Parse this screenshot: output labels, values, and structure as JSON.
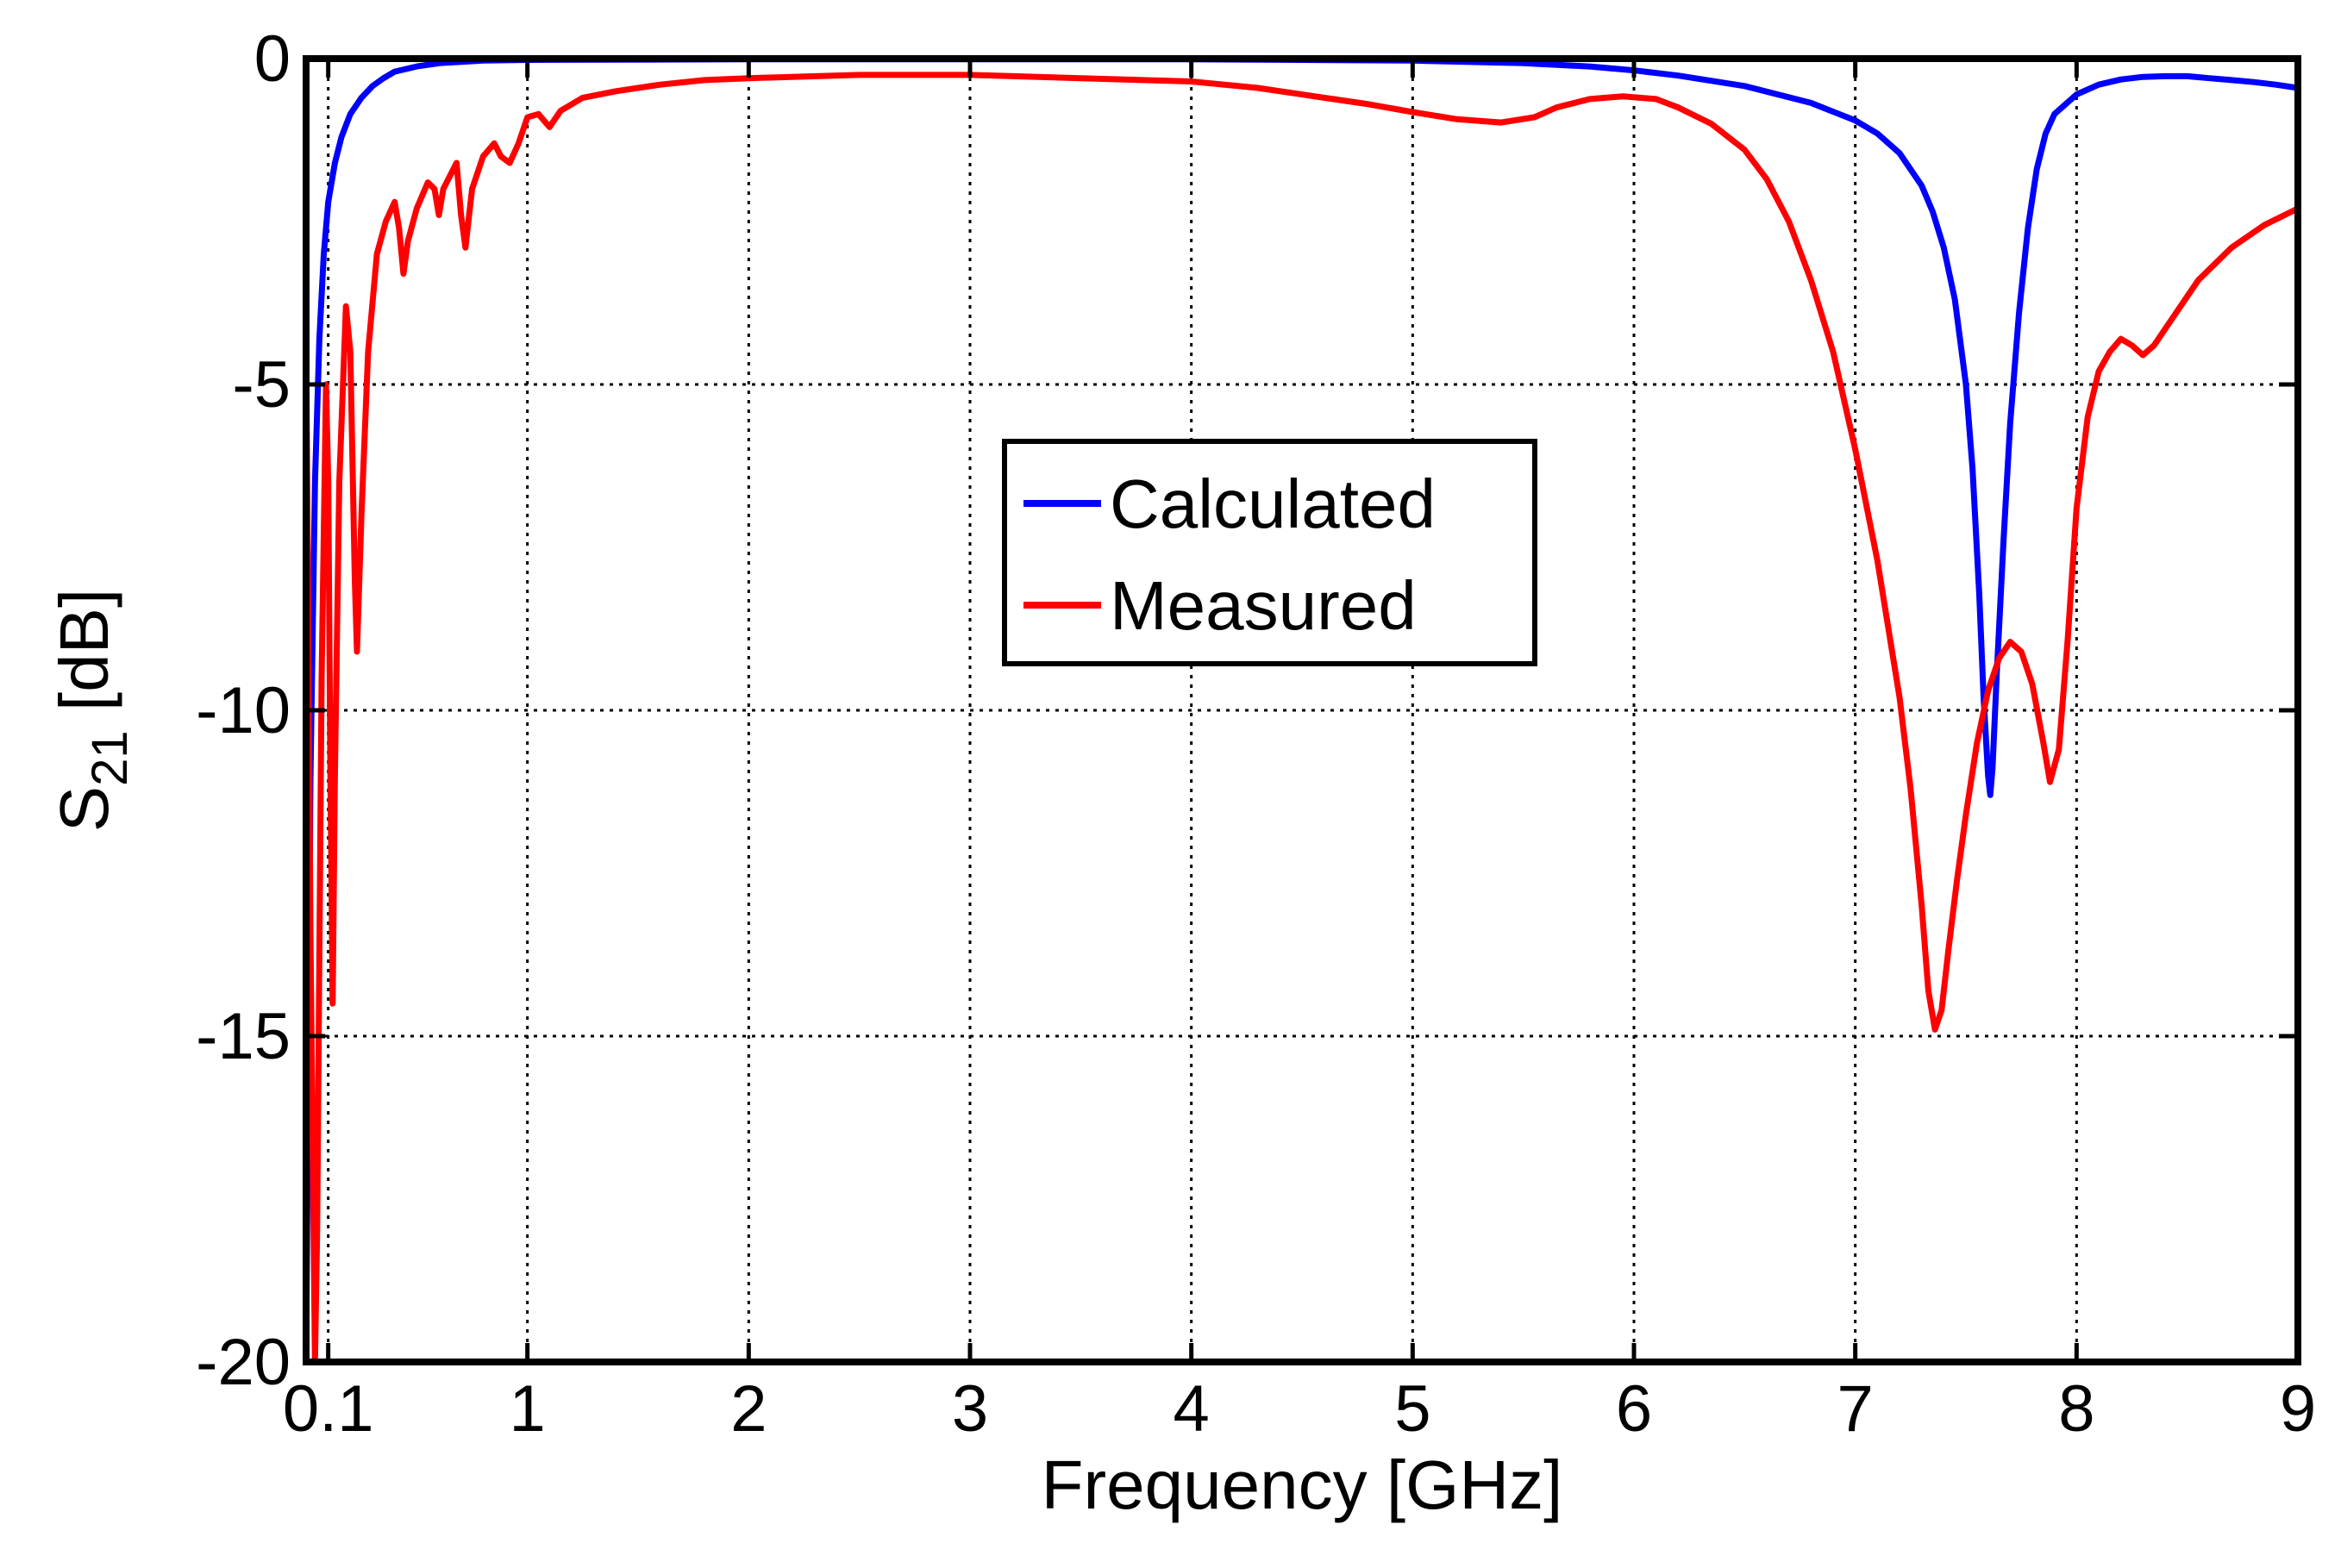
{
  "chart_data": {
    "type": "line",
    "title": "",
    "xlabel": "Frequency [GHz]",
    "ylabel_main": "S",
    "ylabel_sub": "21",
    "ylabel_unit": " [dB]",
    "xlim": [
      0,
      9
    ],
    "ylim": [
      -20,
      0
    ],
    "grid": true,
    "legend_position": "center",
    "xticks": [
      0.1,
      1,
      2,
      3,
      4,
      5,
      6,
      7,
      8,
      9
    ],
    "xtick_labels": [
      "0.1",
      "1",
      "2",
      "3",
      "4",
      "5",
      "6",
      "7",
      "8",
      "9"
    ],
    "yticks": [
      0,
      -5,
      -10,
      -15,
      -20
    ],
    "ytick_labels": [
      "0",
      "-5",
      "-10",
      "-15",
      "-20"
    ],
    "series": [
      {
        "name": "Calculated",
        "color": "#0000ff",
        "points": [
          [
            0.0,
            -20
          ],
          [
            0.02,
            -11
          ],
          [
            0.04,
            -6.5
          ],
          [
            0.06,
            -4.3
          ],
          [
            0.08,
            -3.0
          ],
          [
            0.1,
            -2.2
          ],
          [
            0.13,
            -1.6
          ],
          [
            0.16,
            -1.2
          ],
          [
            0.2,
            -0.85
          ],
          [
            0.25,
            -0.6
          ],
          [
            0.3,
            -0.42
          ],
          [
            0.35,
            -0.3
          ],
          [
            0.4,
            -0.2
          ],
          [
            0.5,
            -0.12
          ],
          [
            0.6,
            -0.07
          ],
          [
            0.8,
            -0.03
          ],
          [
            1.0,
            -0.02
          ],
          [
            2.0,
            -0.01
          ],
          [
            3.0,
            -0.01
          ],
          [
            4.0,
            -0.01
          ],
          [
            4.5,
            -0.02
          ],
          [
            5.0,
            -0.03
          ],
          [
            5.5,
            -0.07
          ],
          [
            5.8,
            -0.12
          ],
          [
            6.0,
            -0.18
          ],
          [
            6.2,
            -0.26
          ],
          [
            6.5,
            -0.42
          ],
          [
            6.8,
            -0.68
          ],
          [
            7.0,
            -0.95
          ],
          [
            7.1,
            -1.15
          ],
          [
            7.2,
            -1.45
          ],
          [
            7.3,
            -1.95
          ],
          [
            7.35,
            -2.35
          ],
          [
            7.4,
            -2.9
          ],
          [
            7.45,
            -3.7
          ],
          [
            7.5,
            -5.0
          ],
          [
            7.53,
            -6.3
          ],
          [
            7.56,
            -8.2
          ],
          [
            7.58,
            -9.8
          ],
          [
            7.6,
            -11.0
          ],
          [
            7.61,
            -11.3
          ],
          [
            7.62,
            -10.9
          ],
          [
            7.64,
            -9.4
          ],
          [
            7.67,
            -7.4
          ],
          [
            7.7,
            -5.6
          ],
          [
            7.74,
            -3.9
          ],
          [
            7.78,
            -2.6
          ],
          [
            7.82,
            -1.7
          ],
          [
            7.86,
            -1.15
          ],
          [
            7.9,
            -0.85
          ],
          [
            8.0,
            -0.55
          ],
          [
            8.1,
            -0.4
          ],
          [
            8.2,
            -0.32
          ],
          [
            8.3,
            -0.28
          ],
          [
            8.4,
            -0.27
          ],
          [
            8.5,
            -0.27
          ],
          [
            8.6,
            -0.3
          ],
          [
            8.7,
            -0.33
          ],
          [
            8.8,
            -0.36
          ],
          [
            8.9,
            -0.4
          ],
          [
            9.0,
            -0.45
          ]
        ]
      },
      {
        "name": "Measured",
        "color": "#ff0000",
        "points": [
          [
            0.0,
            -4.3
          ],
          [
            0.02,
            -13.5
          ],
          [
            0.04,
            -20
          ],
          [
            0.05,
            -18
          ],
          [
            0.07,
            -9.5
          ],
          [
            0.09,
            -5.0
          ],
          [
            0.1,
            -6.5
          ],
          [
            0.11,
            -11
          ],
          [
            0.12,
            -14.5
          ],
          [
            0.13,
            -11
          ],
          [
            0.15,
            -6.5
          ],
          [
            0.18,
            -3.8
          ],
          [
            0.2,
            -4.5
          ],
          [
            0.22,
            -8.0
          ],
          [
            0.23,
            -9.1
          ],
          [
            0.25,
            -7.0
          ],
          [
            0.28,
            -4.5
          ],
          [
            0.32,
            -3.0
          ],
          [
            0.36,
            -2.5
          ],
          [
            0.4,
            -2.2
          ],
          [
            0.42,
            -2.6
          ],
          [
            0.44,
            -3.3
          ],
          [
            0.46,
            -2.8
          ],
          [
            0.5,
            -2.3
          ],
          [
            0.55,
            -1.9
          ],
          [
            0.58,
            -2.0
          ],
          [
            0.6,
            -2.4
          ],
          [
            0.62,
            -2.0
          ],
          [
            0.65,
            -1.8
          ],
          [
            0.68,
            -1.6
          ],
          [
            0.7,
            -2.4
          ],
          [
            0.72,
            -2.9
          ],
          [
            0.75,
            -2.0
          ],
          [
            0.8,
            -1.5
          ],
          [
            0.85,
            -1.3
          ],
          [
            0.88,
            -1.5
          ],
          [
            0.92,
            -1.6
          ],
          [
            0.96,
            -1.3
          ],
          [
            1.0,
            -0.9
          ],
          [
            1.05,
            -0.85
          ],
          [
            1.1,
            -1.05
          ],
          [
            1.15,
            -0.8
          ],
          [
            1.25,
            -0.6
          ],
          [
            1.4,
            -0.5
          ],
          [
            1.6,
            -0.4
          ],
          [
            1.8,
            -0.33
          ],
          [
            2.0,
            -0.3
          ],
          [
            2.5,
            -0.25
          ],
          [
            3.0,
            -0.25
          ],
          [
            3.5,
            -0.3
          ],
          [
            4.0,
            -0.35
          ],
          [
            4.3,
            -0.45
          ],
          [
            4.5,
            -0.55
          ],
          [
            4.8,
            -0.7
          ],
          [
            5.0,
            -0.82
          ],
          [
            5.2,
            -0.93
          ],
          [
            5.4,
            -0.98
          ],
          [
            5.55,
            -0.9
          ],
          [
            5.65,
            -0.75
          ],
          [
            5.8,
            -0.62
          ],
          [
            5.95,
            -0.58
          ],
          [
            6.1,
            -0.62
          ],
          [
            6.2,
            -0.75
          ],
          [
            6.35,
            -1.0
          ],
          [
            6.5,
            -1.4
          ],
          [
            6.6,
            -1.85
          ],
          [
            6.7,
            -2.5
          ],
          [
            6.8,
            -3.4
          ],
          [
            6.9,
            -4.5
          ],
          [
            7.0,
            -6.0
          ],
          [
            7.1,
            -7.7
          ],
          [
            7.2,
            -9.8
          ],
          [
            7.25,
            -11.2
          ],
          [
            7.3,
            -13.0
          ],
          [
            7.33,
            -14.3
          ],
          [
            7.36,
            -14.9
          ],
          [
            7.39,
            -14.6
          ],
          [
            7.42,
            -13.7
          ],
          [
            7.46,
            -12.6
          ],
          [
            7.5,
            -11.6
          ],
          [
            7.55,
            -10.5
          ],
          [
            7.6,
            -9.7
          ],
          [
            7.65,
            -9.2
          ],
          [
            7.7,
            -8.95
          ],
          [
            7.75,
            -9.1
          ],
          [
            7.8,
            -9.6
          ],
          [
            7.85,
            -10.5
          ],
          [
            7.88,
            -11.1
          ],
          [
            7.92,
            -10.6
          ],
          [
            7.96,
            -8.9
          ],
          [
            8.0,
            -6.9
          ],
          [
            8.05,
            -5.5
          ],
          [
            8.1,
            -4.8
          ],
          [
            8.15,
            -4.5
          ],
          [
            8.2,
            -4.3
          ],
          [
            8.25,
            -4.4
          ],
          [
            8.3,
            -4.55
          ],
          [
            8.35,
            -4.4
          ],
          [
            8.45,
            -3.9
          ],
          [
            8.55,
            -3.4
          ],
          [
            8.7,
            -2.9
          ],
          [
            8.85,
            -2.55
          ],
          [
            9.0,
            -2.3
          ]
        ]
      }
    ]
  }
}
